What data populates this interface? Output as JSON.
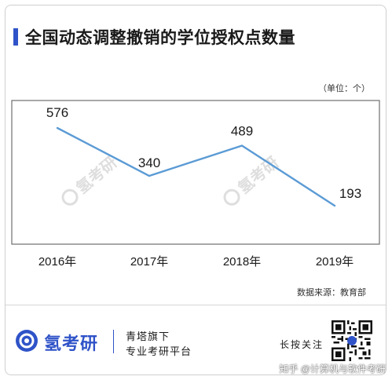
{
  "title": "全国动态调整撤销的学位授权点数量",
  "unit_label": "（单位：个）",
  "source_label": "数据来源：教育部",
  "watermark_text": "氢考研",
  "footer": {
    "brand": "氢考研",
    "line1": "青塔旗下",
    "line2": "专业考研平台",
    "hold_label": "长按关注"
  },
  "credit": "知乎 @计算机与软件考研",
  "colors": {
    "accent": "#2f53c8",
    "line": "#5b9bd5",
    "frame": "#6e6e6e"
  },
  "chart_data": {
    "type": "line",
    "title": "全国动态调整撤销的学位授权点数量",
    "categories": [
      "2016年",
      "2017年",
      "2018年",
      "2019年"
    ],
    "series": [
      {
        "values": [
          576,
          340,
          489,
          193
        ]
      }
    ],
    "ylim": [
      0,
      700
    ],
    "grid": false,
    "legend": "none"
  }
}
